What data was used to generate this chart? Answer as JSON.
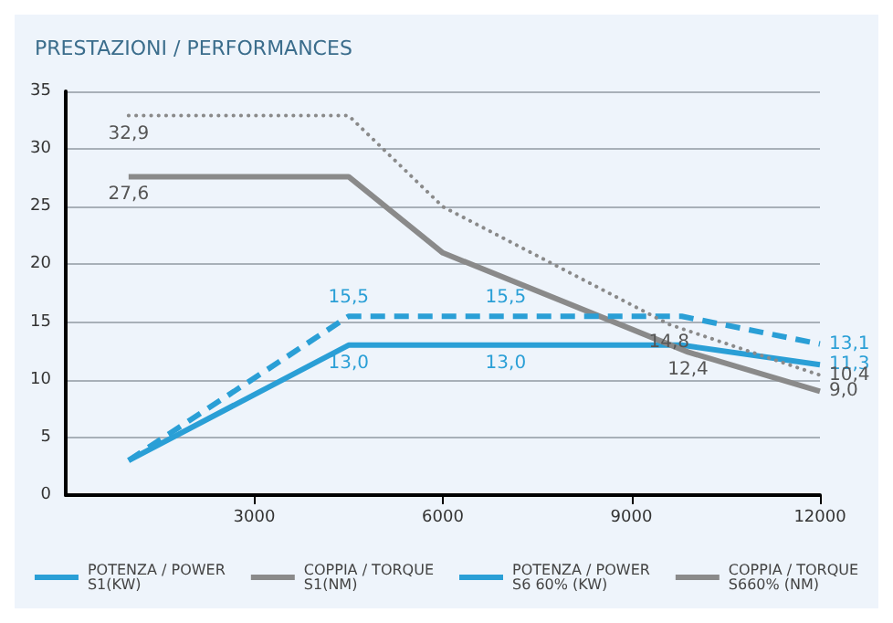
{
  "chart_data": {
    "type": "line",
    "subtitle": "PRESTAZIONI / PERFORMANCES",
    "xlim": [
      0,
      12000
    ],
    "xticks": [
      3000,
      6000,
      9000,
      12000
    ],
    "ylim": [
      0,
      35
    ],
    "yticks": [
      0,
      5,
      10,
      15,
      20,
      25,
      30,
      35
    ],
    "grid": "y",
    "legend": "bottom",
    "marker": "none",
    "series": [
      {
        "name": "POTENZA / POWER\nS1(KW)",
        "color": "#2a9fd6",
        "line_style": "solid",
        "x": [
          1000,
          4500,
          7000,
          9800,
          12000
        ],
        "values": [
          3,
          13.0,
          13.0,
          13.0,
          11.3
        ],
        "value_labels": [
          null,
          "13,0",
          "13,0",
          null,
          "11,3"
        ]
      },
      {
        "name": "COPPIA / TORQUE\nS1(NM)",
        "color": "#8a8a8a",
        "line_style": "solid",
        "x": [
          1000,
          4500,
          6000,
          9900,
          12000
        ],
        "values": [
          27.6,
          27.6,
          21,
          12.4,
          9.0
        ],
        "value_labels": [
          "27,6",
          null,
          null,
          "12,4",
          "9,0"
        ]
      },
      {
        "name": "POTENZA / POWER\nS6 60% (KW)",
        "color": "#2a9fd6",
        "line_style": "dashed",
        "x": [
          1000,
          4500,
          7000,
          9800,
          12000
        ],
        "values": [
          3,
          15.5,
          15.5,
          15.5,
          13.1
        ],
        "value_labels": [
          null,
          "15,5",
          "15,5",
          null,
          "13,1"
        ]
      },
      {
        "name": "COPPIA / TORQUE\nS660% (NM)",
        "color": "#8a8a8a",
        "line_style": "dotted",
        "x": [
          1000,
          4500,
          6000,
          9600,
          12000
        ],
        "values": [
          32.9,
          32.9,
          25,
          14.8,
          10.4
        ],
        "value_labels": [
          "32,9",
          null,
          null,
          "14,8",
          "10,4"
        ]
      }
    ]
  }
}
